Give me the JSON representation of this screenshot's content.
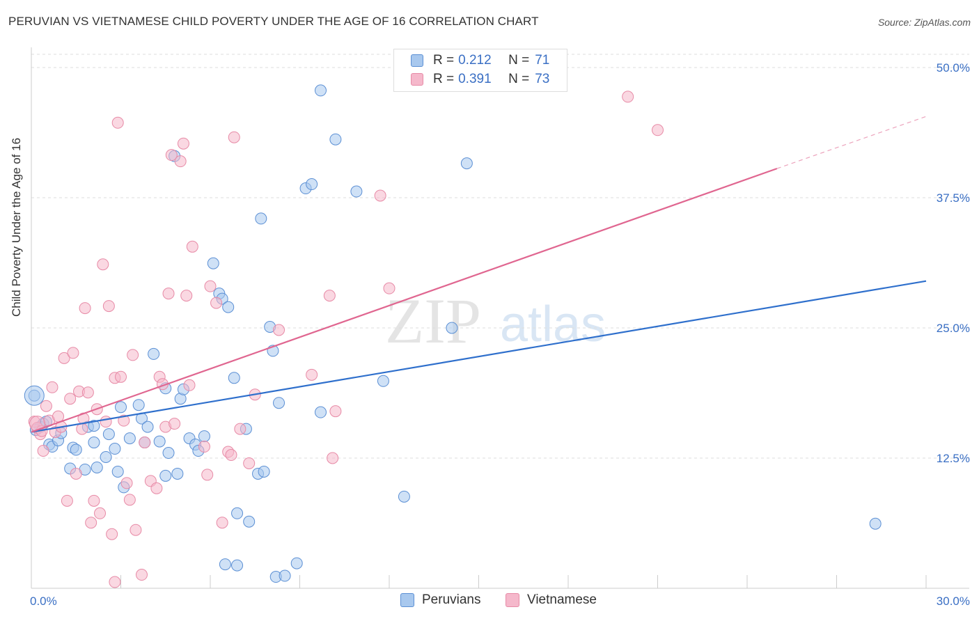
{
  "title": "PERUVIAN VS VIETNAMESE CHILD POVERTY UNDER THE AGE OF 16 CORRELATION CHART",
  "source": "Source: ZipAtlas.com",
  "watermark": {
    "zip": "ZIP",
    "atlas": "atlas"
  },
  "legend_top": [
    {
      "r_label": "R = ",
      "r_value": "0.212",
      "n_label": "N = ",
      "n_value": "71",
      "color": "#a8c8ee"
    },
    {
      "r_label": "R = ",
      "r_value": "0.391",
      "n_label": "N = ",
      "n_value": "73",
      "color": "#f5b8cb"
    }
  ],
  "legend_bottom": [
    {
      "label": "Peruvians",
      "color": "#a8c8ee"
    },
    {
      "label": "Vietnamese",
      "color": "#f5b8cb"
    }
  ],
  "chart_data": {
    "type": "scatter",
    "title": "PERUVIAN VS VIETNAMESE CHILD POVERTY UNDER THE AGE OF 16 CORRELATION CHART",
    "ylabel": "Child Poverty Under the Age of 16",
    "xlim": [
      0,
      30
    ],
    "ylim": [
      0,
      50
    ],
    "x_tick_labels": [
      "0.0%",
      "30.0%"
    ],
    "y_ticks": [
      12.5,
      25.0,
      37.5,
      50.0
    ],
    "y_tick_labels": [
      "12.5%",
      "25.0%",
      "37.5%",
      "50.0%"
    ],
    "grid": true,
    "series": [
      {
        "name": "Peruvians",
        "color": "#a8c8ee",
        "stroke": "#5b8fd4",
        "trend": {
          "x": [
            0,
            30
          ],
          "y": [
            15.0,
            29.5
          ],
          "color": "#2e6fcc"
        },
        "points": [
          [
            0.1,
            18.5
          ],
          [
            0.3,
            15.5
          ],
          [
            0.4,
            15.8
          ],
          [
            0.6,
            13.8
          ],
          [
            0.7,
            13.6
          ],
          [
            0.9,
            14.2
          ],
          [
            1.0,
            14.9
          ],
          [
            1.3,
            11.5
          ],
          [
            1.4,
            13.5
          ],
          [
            1.8,
            11.4
          ],
          [
            1.9,
            15.5
          ],
          [
            2.1,
            15.6
          ],
          [
            2.1,
            14.0
          ],
          [
            2.2,
            11.6
          ],
          [
            2.5,
            12.6
          ],
          [
            2.6,
            14.8
          ],
          [
            2.8,
            13.4
          ],
          [
            2.9,
            11.2
          ],
          [
            3.0,
            17.4
          ],
          [
            3.1,
            9.7
          ],
          [
            3.3,
            14.4
          ],
          [
            3.6,
            17.6
          ],
          [
            3.7,
            16.3
          ],
          [
            3.8,
            14.0
          ],
          [
            3.9,
            15.5
          ],
          [
            4.1,
            22.5
          ],
          [
            4.3,
            14.1
          ],
          [
            4.5,
            19.2
          ],
          [
            4.5,
            10.8
          ],
          [
            4.6,
            13.0
          ],
          [
            4.8,
            41.5
          ],
          [
            4.9,
            11.0
          ],
          [
            5.0,
            18.2
          ],
          [
            5.1,
            19.1
          ],
          [
            5.3,
            14.4
          ],
          [
            5.5,
            13.8
          ],
          [
            5.6,
            13.2
          ],
          [
            5.8,
            14.6
          ],
          [
            6.1,
            31.2
          ],
          [
            6.3,
            28.3
          ],
          [
            6.4,
            27.8
          ],
          [
            6.6,
            27.0
          ],
          [
            6.8,
            20.2
          ],
          [
            6.5,
            2.3
          ],
          [
            6.9,
            2.2
          ],
          [
            6.9,
            7.2
          ],
          [
            7.3,
            6.4
          ],
          [
            7.2,
            15.3
          ],
          [
            7.6,
            11.0
          ],
          [
            7.7,
            35.5
          ],
          [
            7.8,
            11.2
          ],
          [
            8.0,
            25.1
          ],
          [
            8.1,
            22.8
          ],
          [
            8.2,
            1.1
          ],
          [
            8.3,
            17.8
          ],
          [
            8.5,
            1.2
          ],
          [
            8.9,
            2.4
          ],
          [
            9.2,
            38.4
          ],
          [
            9.4,
            38.8
          ],
          [
            9.7,
            16.9
          ],
          [
            9.7,
            47.8
          ],
          [
            10.2,
            43.1
          ],
          [
            10.9,
            38.1
          ],
          [
            11.8,
            19.9
          ],
          [
            12.5,
            8.8
          ],
          [
            14.1,
            25.0
          ],
          [
            14.6,
            40.8
          ],
          [
            28.3,
            6.2
          ],
          [
            0.15,
            15.2
          ],
          [
            0.5,
            16.0
          ],
          [
            1.5,
            13.3
          ]
        ]
      },
      {
        "name": "Vietnamese",
        "color": "#f5b8cb",
        "stroke": "#e78aa6",
        "trend": {
          "x": [
            0,
            25
          ],
          "y": [
            15.0,
            40.3
          ],
          "dashed_to": [
            30,
            45.3
          ],
          "color": "#e06690"
        },
        "points": [
          [
            0.1,
            16.0
          ],
          [
            0.2,
            15.4
          ],
          [
            0.3,
            14.8
          ],
          [
            0.4,
            13.2
          ],
          [
            0.5,
            17.5
          ],
          [
            0.6,
            16.1
          ],
          [
            0.7,
            19.3
          ],
          [
            0.8,
            15.0
          ],
          [
            0.9,
            16.5
          ],
          [
            1.0,
            15.5
          ],
          [
            1.1,
            22.1
          ],
          [
            1.2,
            8.4
          ],
          [
            1.3,
            18.2
          ],
          [
            1.4,
            22.6
          ],
          [
            1.5,
            11.0
          ],
          [
            1.6,
            18.9
          ],
          [
            1.7,
            15.3
          ],
          [
            1.8,
            26.9
          ],
          [
            1.9,
            18.8
          ],
          [
            2.0,
            6.3
          ],
          [
            2.1,
            8.4
          ],
          [
            2.2,
            17.2
          ],
          [
            2.3,
            7.2
          ],
          [
            2.4,
            31.1
          ],
          [
            2.5,
            16.0
          ],
          [
            2.6,
            27.1
          ],
          [
            2.7,
            5.2
          ],
          [
            2.8,
            20.2
          ],
          [
            2.8,
            0.6
          ],
          [
            2.9,
            44.7
          ],
          [
            3.0,
            20.3
          ],
          [
            3.1,
            16.1
          ],
          [
            3.2,
            10.1
          ],
          [
            3.3,
            8.5
          ],
          [
            3.4,
            22.4
          ],
          [
            3.5,
            5.6
          ],
          [
            3.7,
            1.3
          ],
          [
            3.8,
            14.0
          ],
          [
            4.0,
            10.3
          ],
          [
            4.2,
            9.6
          ],
          [
            4.3,
            20.3
          ],
          [
            4.4,
            19.6
          ],
          [
            4.5,
            15.5
          ],
          [
            4.6,
            28.3
          ],
          [
            4.7,
            41.6
          ],
          [
            4.8,
            15.8
          ],
          [
            5.0,
            41.0
          ],
          [
            5.1,
            42.7
          ],
          [
            5.2,
            28.1
          ],
          [
            5.3,
            19.5
          ],
          [
            5.4,
            32.8
          ],
          [
            5.8,
            13.6
          ],
          [
            5.9,
            10.9
          ],
          [
            6.0,
            29.0
          ],
          [
            6.2,
            27.4
          ],
          [
            6.4,
            6.3
          ],
          [
            6.6,
            13.1
          ],
          [
            6.7,
            12.8
          ],
          [
            6.8,
            43.3
          ],
          [
            7.0,
            15.3
          ],
          [
            7.3,
            12.0
          ],
          [
            7.5,
            18.6
          ],
          [
            8.3,
            24.8
          ],
          [
            9.4,
            20.5
          ],
          [
            10.0,
            28.1
          ],
          [
            10.2,
            17.0
          ],
          [
            10.1,
            12.5
          ],
          [
            11.7,
            37.7
          ],
          [
            12.0,
            28.8
          ],
          [
            20.0,
            47.2
          ],
          [
            21.0,
            44.0
          ],
          [
            0.35,
            15.1
          ],
          [
            1.75,
            16.3
          ]
        ]
      }
    ]
  }
}
